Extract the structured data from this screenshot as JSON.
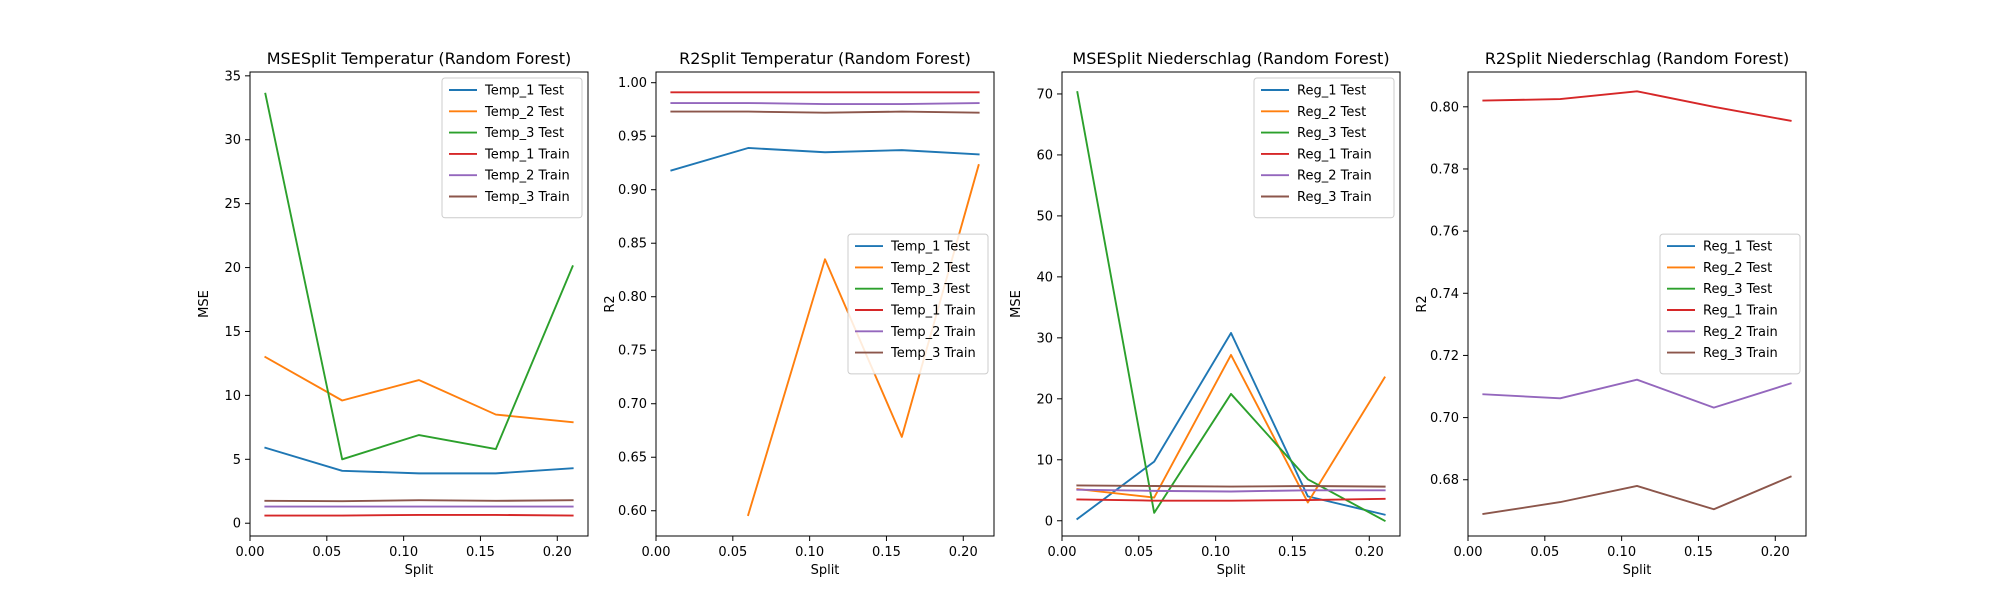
{
  "chart_data": [
    {
      "type": "line",
      "title": "MSESplit Temperatur (Random Forest)",
      "xlabel": "Split",
      "ylabel": "MSE",
      "xlim": [
        0.0,
        0.22
      ],
      "ylim": [
        -1.0,
        35.3
      ],
      "xticks": [
        "0.00",
        "0.05",
        "0.10",
        "0.15",
        "0.20"
      ],
      "yticks": [
        "0",
        "5",
        "10",
        "15",
        "20",
        "25",
        "30",
        "35"
      ],
      "legend_position": "upper right",
      "x": [
        0.01,
        0.06,
        0.11,
        0.16,
        0.21
      ],
      "series": [
        {
          "name": "Temp_1 Test",
          "color": "#1f77b4",
          "values": [
            5.9,
            4.1,
            3.9,
            3.9,
            4.3
          ]
        },
        {
          "name": "Temp_2 Test",
          "color": "#ff7f0e",
          "values": [
            13.0,
            9.6,
            11.2,
            8.5,
            7.9
          ]
        },
        {
          "name": "Temp_3 Test",
          "color": "#2ca02c",
          "values": [
            33.6,
            5.0,
            6.9,
            5.8,
            20.1
          ]
        },
        {
          "name": "Temp_1 Train",
          "color": "#d62728",
          "values": [
            0.6,
            0.6,
            0.65,
            0.65,
            0.6
          ]
        },
        {
          "name": "Temp_2 Train",
          "color": "#9467bd",
          "values": [
            1.3,
            1.3,
            1.3,
            1.3,
            1.3
          ]
        },
        {
          "name": "Temp_3 Train",
          "color": "#8c564b",
          "values": [
            1.75,
            1.72,
            1.8,
            1.75,
            1.8
          ]
        }
      ]
    },
    {
      "type": "line",
      "title": "R2Split Temperatur (Random Forest)",
      "xlabel": "Split",
      "ylabel": "R2",
      "xlim": [
        0.0,
        0.22
      ],
      "ylim": [
        0.5764,
        1.01
      ],
      "xticks": [
        "0.00",
        "0.05",
        "0.10",
        "0.15",
        "0.20"
      ],
      "yticks": [
        "0.60",
        "0.65",
        "0.70",
        "0.75",
        "0.80",
        "0.85",
        "0.90",
        "0.95",
        "1.00"
      ],
      "legend_position": "center right",
      "x": [
        0.01,
        0.06,
        0.11,
        0.16,
        0.21
      ],
      "series": [
        {
          "name": "Temp_1 Test",
          "color": "#1f77b4",
          "values": [
            0.918,
            0.939,
            0.935,
            0.937,
            0.933
          ]
        },
        {
          "name": "Temp_2 Test",
          "color": "#ff7f0e",
          "values": [
            null,
            0.596,
            0.835,
            0.669,
            0.923
          ]
        },
        {
          "name": "Temp_3 Test",
          "color": "#2ca02c",
          "values": [
            null,
            null,
            null,
            null,
            null
          ]
        },
        {
          "name": "Temp_1 Train",
          "color": "#d62728",
          "values": [
            0.991,
            0.991,
            0.991,
            0.991,
            0.991
          ]
        },
        {
          "name": "Temp_2 Train",
          "color": "#9467bd",
          "values": [
            0.981,
            0.981,
            0.98,
            0.98,
            0.981
          ]
        },
        {
          "name": "Temp_3 Train",
          "color": "#8c564b",
          "values": [
            0.973,
            0.973,
            0.972,
            0.973,
            0.972
          ]
        }
      ]
    },
    {
      "type": "line",
      "title": "MSESplit Niederschlag (Random Forest)",
      "xlabel": "Split",
      "ylabel": "MSE",
      "xlim": [
        0.0,
        0.22
      ],
      "ylim": [
        -2.5,
        73.6
      ],
      "xticks": [
        "0.00",
        "0.05",
        "0.10",
        "0.15",
        "0.20"
      ],
      "yticks": [
        "0",
        "10",
        "20",
        "30",
        "40",
        "50",
        "60",
        "70"
      ],
      "legend_position": "upper right",
      "x": [
        0.01,
        0.06,
        0.11,
        0.16,
        0.21
      ],
      "series": [
        {
          "name": "Reg_1 Test",
          "color": "#1f77b4",
          "values": [
            0.3,
            9.7,
            30.8,
            4.0,
            1.0
          ]
        },
        {
          "name": "Reg_2 Test",
          "color": "#ff7f0e",
          "values": [
            5.2,
            3.8,
            27.2,
            3.0,
            23.5
          ]
        },
        {
          "name": "Reg_3 Test",
          "color": "#2ca02c",
          "values": [
            70.3,
            1.3,
            20.8,
            6.8,
            0.0
          ]
        },
        {
          "name": "Reg_1 Train",
          "color": "#d62728",
          "values": [
            3.5,
            3.3,
            3.3,
            3.4,
            3.6
          ]
        },
        {
          "name": "Reg_2 Train",
          "color": "#9467bd",
          "values": [
            5.1,
            4.9,
            4.8,
            5.0,
            5.0
          ]
        },
        {
          "name": "Reg_3 Train",
          "color": "#8c564b",
          "values": [
            5.8,
            5.7,
            5.6,
            5.7,
            5.6
          ]
        }
      ]
    },
    {
      "type": "line",
      "title": "R2Split Niederschlag (Random Forest)",
      "xlabel": "Split",
      "ylabel": "R2",
      "xlim": [
        0.0,
        0.22
      ],
      "ylim": [
        0.6619,
        0.8112
      ],
      "xticks": [
        "0.00",
        "0.05",
        "0.10",
        "0.15",
        "0.20"
      ],
      "yticks": [
        "0.68",
        "0.70",
        "0.72",
        "0.74",
        "0.76",
        "0.78",
        "0.80"
      ],
      "legend_position": "center right",
      "x": [
        0.01,
        0.06,
        0.11,
        0.16,
        0.21
      ],
      "series": [
        {
          "name": "Reg_1 Test",
          "color": "#1f77b4",
          "values": [
            null,
            null,
            null,
            null,
            null
          ]
        },
        {
          "name": "Reg_2 Test",
          "color": "#ff7f0e",
          "values": [
            null,
            null,
            null,
            null,
            null
          ]
        },
        {
          "name": "Reg_3 Test",
          "color": "#2ca02c",
          "values": [
            null,
            null,
            null,
            null,
            null
          ]
        },
        {
          "name": "Reg_1 Train",
          "color": "#d62728",
          "values": [
            0.802,
            0.8025,
            0.805,
            0.8,
            0.7955
          ]
        },
        {
          "name": "Reg_2 Train",
          "color": "#9467bd",
          "values": [
            0.7075,
            0.7062,
            0.7122,
            0.7032,
            0.711
          ]
        },
        {
          "name": "Reg_3 Train",
          "color": "#8c564b",
          "values": [
            0.669,
            0.6728,
            0.678,
            0.6705,
            0.681
          ]
        }
      ]
    }
  ]
}
